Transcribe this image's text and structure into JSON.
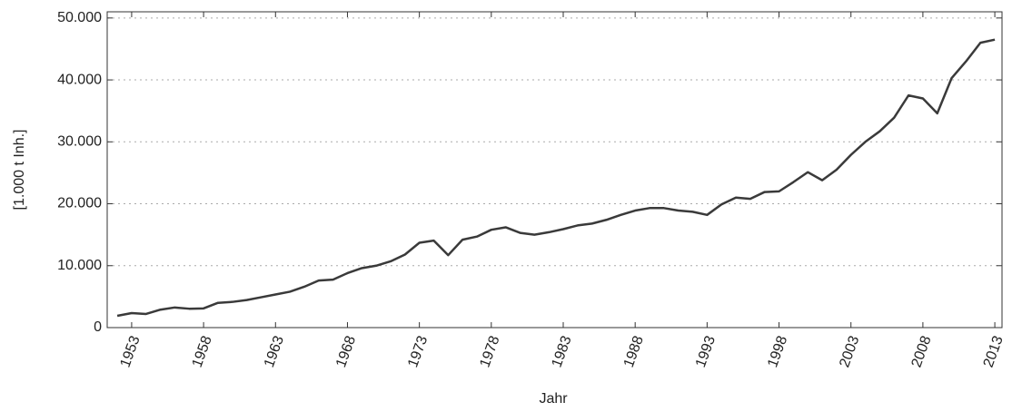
{
  "chart_data": {
    "type": "line",
    "xlabel": "Jahr",
    "ylabel": "[1.000 t Inh.]",
    "x": [
      1952,
      1953,
      1954,
      1955,
      1956,
      1957,
      1958,
      1959,
      1960,
      1961,
      1962,
      1963,
      1964,
      1965,
      1966,
      1967,
      1968,
      1969,
      1970,
      1971,
      1972,
      1973,
      1974,
      1975,
      1976,
      1977,
      1978,
      1979,
      1980,
      1981,
      1982,
      1983,
      1984,
      1985,
      1986,
      1987,
      1988,
      1989,
      1990,
      1991,
      1992,
      1993,
      1994,
      1995,
      1996,
      1997,
      1998,
      1999,
      2000,
      2001,
      2002,
      2003,
      2004,
      2005,
      2006,
      2007,
      2008,
      2009,
      2010,
      2011,
      2012,
      2013
    ],
    "series": [
      {
        "name": "Jahr",
        "color": "#3a3a3a",
        "values": [
          1900,
          2350,
          2200,
          2900,
          3250,
          3050,
          3100,
          4000,
          4150,
          4450,
          4900,
          5350,
          5800,
          6600,
          7600,
          7750,
          8800,
          9600,
          10000,
          10700,
          11800,
          13700,
          14050,
          11700,
          14200,
          14700,
          15800,
          16200,
          15300,
          15000,
          15400,
          15900,
          16500,
          16800,
          17400,
          18200,
          18900,
          19300,
          19300,
          18900,
          18700,
          18200,
          19900,
          21000,
          20800,
          21900,
          22000,
          23500,
          25100,
          23800,
          25500,
          27900,
          30000,
          31700,
          33900,
          37500,
          37000,
          34600,
          40300,
          43000,
          46000,
          46500
        ]
      }
    ],
    "xlim": [
      1951.3,
      2013.5
    ],
    "xticks": [
      1953,
      1958,
      1963,
      1968,
      1973,
      1978,
      1983,
      1988,
      1993,
      1998,
      2003,
      2008,
      2013
    ],
    "ylim": [
      0,
      51000
    ],
    "yticks": [
      0,
      {
        "value": 10000,
        "label": "10.000"
      },
      {
        "value": 20000,
        "label": "20.000"
      },
      {
        "value": 30000,
        "label": "30.000"
      },
      {
        "value": 40000,
        "label": "40.000"
      },
      {
        "value": 50000,
        "label": "50.000"
      }
    ],
    "grid": true
  }
}
